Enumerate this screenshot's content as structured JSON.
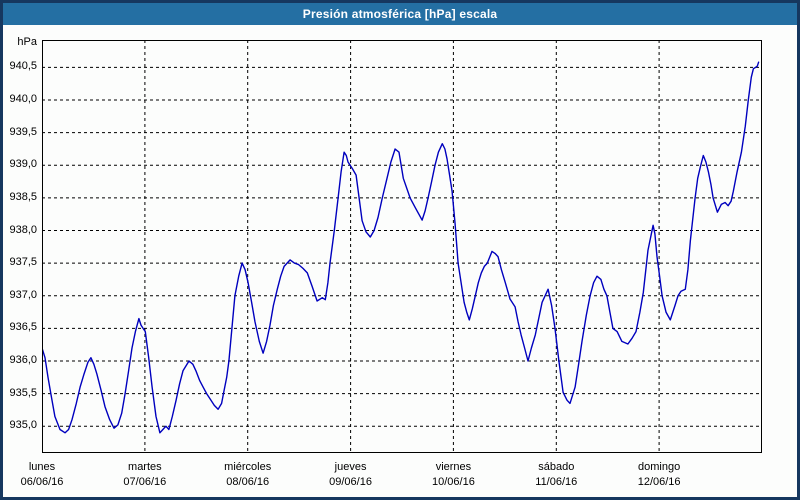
{
  "window": {
    "title": "Presión atmosférica [hPa] escala"
  },
  "colors": {
    "titlebar_bg": "#246FA3",
    "titlebar_text": "#FFFFFF",
    "window_border": "#16375F",
    "body_bg": "#FCFDFC",
    "grid": "#000000",
    "axis_text": "#000000",
    "line": "#0000BE"
  },
  "chart_data": {
    "type": "line",
    "title": "Presión atmosférica [hPa] escala",
    "unit_label": "hPa",
    "ylabel": "hPa",
    "grid": true,
    "ylim": [
      934.59,
      940.92
    ],
    "xlim_hours": [
      0,
      168
    ],
    "y_axis": {
      "ticks": [
        {
          "value": 940.5,
          "label": "940,5"
        },
        {
          "value": 940.0,
          "label": "940,0"
        },
        {
          "value": 939.5,
          "label": "939,5"
        },
        {
          "value": 939.0,
          "label": "939,0"
        },
        {
          "value": 938.5,
          "label": "938,5"
        },
        {
          "value": 938.0,
          "label": "938,0"
        },
        {
          "value": 937.5,
          "label": "937,5"
        },
        {
          "value": 937.0,
          "label": "937,0"
        },
        {
          "value": 936.5,
          "label": "936,5"
        },
        {
          "value": 936.0,
          "label": "936,0"
        },
        {
          "value": 935.5,
          "label": "935,5"
        },
        {
          "value": 935.0,
          "label": "935,0"
        }
      ]
    },
    "x_axis": {
      "days": [
        {
          "name": "lunes",
          "date": "06/06/16",
          "hour": 0
        },
        {
          "name": "martes",
          "date": "07/06/16",
          "hour": 24
        },
        {
          "name": "miércoles",
          "date": "08/06/16",
          "hour": 48
        },
        {
          "name": "jueves",
          "date": "09/06/16",
          "hour": 72
        },
        {
          "name": "viernes",
          "date": "10/06/16",
          "hour": 96
        },
        {
          "name": "sábado",
          "date": "11/06/16",
          "hour": 120
        },
        {
          "name": "domingo",
          "date": "12/06/16",
          "hour": 144
        }
      ]
    },
    "series": [
      {
        "name": "Presión atmosférica",
        "color": "#0000BE",
        "points": [
          [
            0,
            936.2
          ],
          [
            0.7,
            936.05
          ],
          [
            1.4,
            935.75
          ],
          [
            2.2,
            935.45
          ],
          [
            3,
            935.15
          ],
          [
            4.2,
            934.95
          ],
          [
            5.4,
            934.9
          ],
          [
            6.2,
            934.95
          ],
          [
            7,
            935.1
          ],
          [
            8,
            935.35
          ],
          [
            8.9,
            935.6
          ],
          [
            9.8,
            935.8
          ],
          [
            10.7,
            935.98
          ],
          [
            11.4,
            936.05
          ],
          [
            12.1,
            935.95
          ],
          [
            12.8,
            935.8
          ],
          [
            13.8,
            935.55
          ],
          [
            14.7,
            935.3
          ],
          [
            15.8,
            935.1
          ],
          [
            16.8,
            934.97
          ],
          [
            17.7,
            935.02
          ],
          [
            18.6,
            935.2
          ],
          [
            19.4,
            935.5
          ],
          [
            20.2,
            935.85
          ],
          [
            21,
            936.2
          ],
          [
            21.8,
            936.45
          ],
          [
            22.6,
            936.65
          ],
          [
            23.1,
            936.55
          ],
          [
            23.6,
            936.5
          ],
          [
            24.1,
            936.45
          ],
          [
            24.9,
            936.05
          ],
          [
            25.7,
            935.6
          ],
          [
            26.6,
            935.15
          ],
          [
            27.5,
            934.9
          ],
          [
            28.2,
            934.95
          ],
          [
            28.9,
            935.0
          ],
          [
            29.6,
            934.95
          ],
          [
            30.4,
            935.15
          ],
          [
            31.3,
            935.4
          ],
          [
            32.1,
            935.65
          ],
          [
            32.9,
            935.85
          ],
          [
            34.3,
            936.0
          ],
          [
            35.2,
            935.95
          ],
          [
            35.9,
            935.85
          ],
          [
            36.8,
            935.7
          ],
          [
            37.6,
            935.6
          ],
          [
            38.4,
            935.5
          ],
          [
            39.2,
            935.42
          ],
          [
            40.2,
            935.32
          ],
          [
            41.1,
            935.26
          ],
          [
            41.9,
            935.35
          ],
          [
            42.5,
            935.55
          ],
          [
            43.1,
            935.75
          ],
          [
            43.6,
            936.0
          ],
          [
            44.3,
            936.5
          ],
          [
            45,
            937.0
          ],
          [
            45.9,
            937.3
          ],
          [
            46.7,
            937.5
          ],
          [
            47.4,
            937.4
          ],
          [
            48.1,
            937.2
          ],
          [
            48.9,
            936.9
          ],
          [
            49.7,
            936.6
          ],
          [
            50.7,
            936.3
          ],
          [
            51.6,
            936.12
          ],
          [
            52.4,
            936.3
          ],
          [
            53.2,
            936.55
          ],
          [
            54,
            936.85
          ],
          [
            54.9,
            937.1
          ],
          [
            55.7,
            937.3
          ],
          [
            56.5,
            937.45
          ],
          [
            57.2,
            937.5
          ],
          [
            57.9,
            937.55
          ],
          [
            58.9,
            937.5
          ],
          [
            59.8,
            937.48
          ],
          [
            60.9,
            937.42
          ],
          [
            61.9,
            937.35
          ],
          [
            63,
            937.15
          ],
          [
            64.2,
            936.92
          ],
          [
            65.4,
            936.97
          ],
          [
            66.1,
            936.94
          ],
          [
            66.7,
            937.2
          ],
          [
            67.2,
            937.5
          ],
          [
            68.2,
            938.0
          ],
          [
            69.1,
            938.5
          ],
          [
            69.8,
            938.9
          ],
          [
            70.5,
            939.2
          ],
          [
            71,
            939.15
          ],
          [
            71.4,
            939.05
          ],
          [
            72.4,
            938.95
          ],
          [
            73.3,
            938.85
          ],
          [
            74,
            938.5
          ],
          [
            74.7,
            938.15
          ],
          [
            75.6,
            937.98
          ],
          [
            76.6,
            937.9
          ],
          [
            77.5,
            938.0
          ],
          [
            78.4,
            938.2
          ],
          [
            79.4,
            938.5
          ],
          [
            80.5,
            938.8
          ],
          [
            81.4,
            939.05
          ],
          [
            82.4,
            939.25
          ],
          [
            83.3,
            939.2
          ],
          [
            84.3,
            938.8
          ],
          [
            85.9,
            938.5
          ],
          [
            87.1,
            938.35
          ],
          [
            88.7,
            938.16
          ],
          [
            89.4,
            938.3
          ],
          [
            90.1,
            938.5
          ],
          [
            90.9,
            938.75
          ],
          [
            91.7,
            939.0
          ],
          [
            92.5,
            939.2
          ],
          [
            93.4,
            939.33
          ],
          [
            94,
            939.25
          ],
          [
            94.5,
            939.1
          ],
          [
            95.1,
            938.85
          ],
          [
            95.7,
            938.6
          ],
          [
            96.4,
            938.1
          ],
          [
            97.1,
            937.5
          ],
          [
            97.8,
            937.2
          ],
          [
            98.5,
            936.9
          ],
          [
            99.1,
            936.75
          ],
          [
            99.7,
            936.63
          ],
          [
            100.4,
            936.8
          ],
          [
            101.1,
            937.0
          ],
          [
            101.8,
            937.2
          ],
          [
            102.5,
            937.35
          ],
          [
            103.2,
            937.45
          ],
          [
            103.9,
            937.5
          ],
          [
            105,
            937.68
          ],
          [
            105.7,
            937.65
          ],
          [
            106.4,
            937.6
          ],
          [
            107.2,
            937.4
          ],
          [
            108.1,
            937.2
          ],
          [
            109.2,
            936.95
          ],
          [
            110.4,
            936.83
          ],
          [
            111.1,
            936.6
          ],
          [
            111.8,
            936.4
          ],
          [
            112.6,
            936.2
          ],
          [
            113.4,
            936.0
          ],
          [
            114.2,
            936.2
          ],
          [
            115.1,
            936.4
          ],
          [
            115.9,
            936.65
          ],
          [
            116.7,
            936.9
          ],
          [
            117.4,
            937.0
          ],
          [
            118.1,
            937.1
          ],
          [
            118.9,
            936.85
          ],
          [
            119.7,
            936.5
          ],
          [
            120.6,
            936.0
          ],
          [
            121.6,
            935.52
          ],
          [
            122.5,
            935.4
          ],
          [
            123.2,
            935.35
          ],
          [
            124.4,
            935.6
          ],
          [
            125.2,
            935.95
          ],
          [
            126,
            936.3
          ],
          [
            127,
            936.7
          ],
          [
            127.9,
            937.0
          ],
          [
            128.7,
            937.2
          ],
          [
            129.5,
            937.3
          ],
          [
            130.4,
            937.25
          ],
          [
            131.1,
            937.1
          ],
          [
            131.8,
            937.0
          ],
          [
            132.5,
            936.75
          ],
          [
            133.2,
            936.5
          ],
          [
            134.2,
            936.45
          ],
          [
            135.3,
            936.3
          ],
          [
            136.7,
            936.26
          ],
          [
            137.7,
            936.35
          ],
          [
            138.6,
            936.45
          ],
          [
            139.5,
            936.75
          ],
          [
            140.3,
            937.05
          ],
          [
            141.4,
            937.7
          ],
          [
            142.6,
            938.08
          ],
          [
            143,
            937.95
          ],
          [
            143.5,
            937.6
          ],
          [
            144.1,
            937.3
          ],
          [
            144.7,
            937.0
          ],
          [
            145.6,
            936.75
          ],
          [
            146.6,
            936.63
          ],
          [
            147.7,
            936.85
          ],
          [
            148.4,
            937.0
          ],
          [
            149.1,
            937.07
          ],
          [
            150.1,
            937.1
          ],
          [
            150.7,
            937.4
          ],
          [
            151.3,
            937.85
          ],
          [
            152.4,
            938.5
          ],
          [
            153,
            938.8
          ],
          [
            153.6,
            938.97
          ],
          [
            154.3,
            939.15
          ],
          [
            154.9,
            939.05
          ],
          [
            155.5,
            938.9
          ],
          [
            156.1,
            938.7
          ],
          [
            156.6,
            938.5
          ],
          [
            157.6,
            938.28
          ],
          [
            158.5,
            938.4
          ],
          [
            159.4,
            938.43
          ],
          [
            160.1,
            938.38
          ],
          [
            160.8,
            938.45
          ],
          [
            161.3,
            938.6
          ],
          [
            162.2,
            938.9
          ],
          [
            163.2,
            939.2
          ],
          [
            164.1,
            939.6
          ],
          [
            164.8,
            940.0
          ],
          [
            165.5,
            940.35
          ],
          [
            166,
            940.48
          ],
          [
            166.5,
            940.5
          ],
          [
            166.9,
            940.52
          ],
          [
            167.2,
            940.58
          ]
        ]
      }
    ]
  }
}
